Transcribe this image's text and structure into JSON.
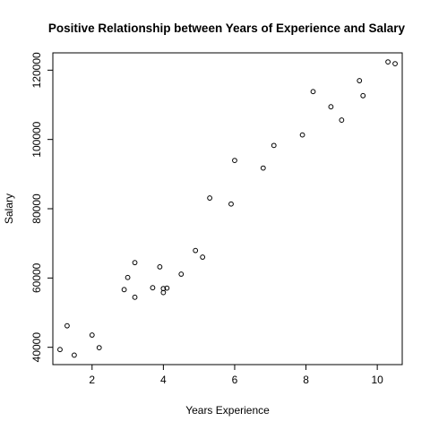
{
  "chart_data": {
    "type": "scatter",
    "title": "Positive Relationship between Years of Experience and Salary",
    "xlabel": "Years Experience",
    "ylabel": "Salary",
    "xlim": [
      0.9,
      10.7
    ],
    "ylim": [
      35000,
      125000
    ],
    "xticks": [
      2,
      4,
      6,
      8,
      10
    ],
    "yticks": [
      40000,
      60000,
      80000,
      100000,
      120000
    ],
    "grid": false,
    "legend": "none",
    "points": [
      {
        "x": 1.1,
        "y": 39343
      },
      {
        "x": 1.3,
        "y": 46205
      },
      {
        "x": 1.5,
        "y": 37731
      },
      {
        "x": 2.0,
        "y": 43525
      },
      {
        "x": 2.2,
        "y": 39891
      },
      {
        "x": 2.9,
        "y": 56642
      },
      {
        "x": 3.0,
        "y": 60150
      },
      {
        "x": 3.2,
        "y": 54445
      },
      {
        "x": 3.2,
        "y": 64445
      },
      {
        "x": 3.7,
        "y": 57189
      },
      {
        "x": 3.9,
        "y": 63218
      },
      {
        "x": 4.0,
        "y": 55794
      },
      {
        "x": 4.0,
        "y": 56957
      },
      {
        "x": 4.1,
        "y": 57081
      },
      {
        "x": 4.5,
        "y": 61111
      },
      {
        "x": 4.9,
        "y": 67938
      },
      {
        "x": 5.1,
        "y": 66029
      },
      {
        "x": 5.3,
        "y": 83088
      },
      {
        "x": 5.9,
        "y": 81363
      },
      {
        "x": 6.0,
        "y": 93940
      },
      {
        "x": 6.8,
        "y": 91738
      },
      {
        "x": 7.1,
        "y": 98273
      },
      {
        "x": 7.9,
        "y": 101302
      },
      {
        "x": 8.2,
        "y": 113812
      },
      {
        "x": 8.7,
        "y": 109431
      },
      {
        "x": 9.0,
        "y": 105582
      },
      {
        "x": 9.5,
        "y": 116969
      },
      {
        "x": 9.6,
        "y": 112635
      },
      {
        "x": 10.3,
        "y": 122391
      },
      {
        "x": 10.5,
        "y": 121872
      }
    ]
  }
}
